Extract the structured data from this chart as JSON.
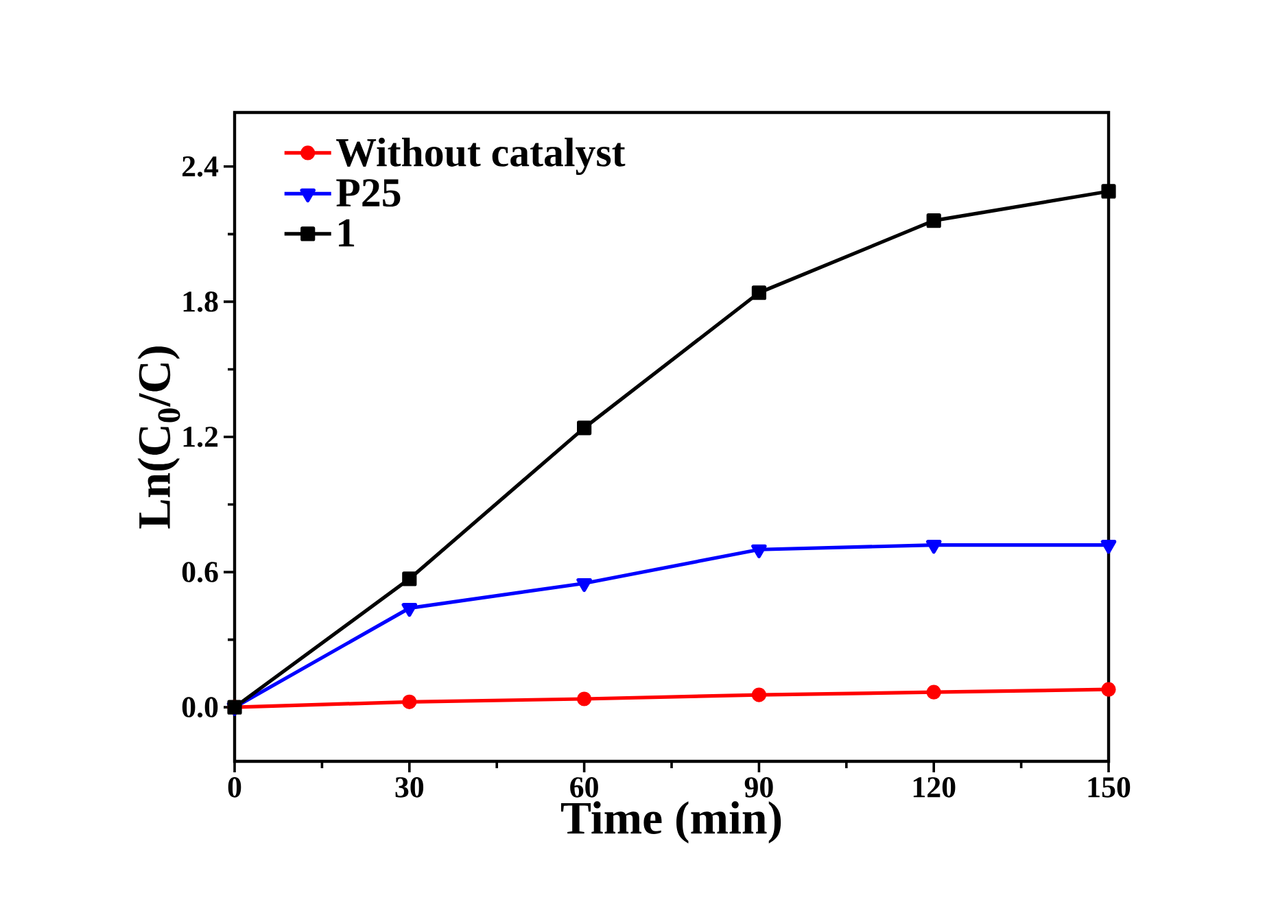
{
  "chart_data": {
    "type": "line",
    "xlabel": "Time (min)",
    "ylabel": "Ln(C$_{0}$/C)",
    "x": [
      0,
      30,
      60,
      90,
      120,
      150
    ],
    "series": [
      {
        "name": "Without catalyst",
        "color": "#ff0000",
        "marker": "circle",
        "values": [
          0,
          0.024,
          0.037,
          0.055,
          0.067,
          0.079
        ]
      },
      {
        "name": "P25",
        "color": "#0000ff",
        "marker": "triangle",
        "values": [
          0,
          0.44,
          0.55,
          0.7,
          0.72,
          0.72
        ]
      },
      {
        "name": "1",
        "color": "#000000",
        "marker": "square",
        "values": [
          0,
          0.57,
          1.24,
          1.84,
          2.16,
          2.29
        ]
      }
    ],
    "xlim": [
      0,
      150
    ],
    "ylim": [
      -0.24,
      2.64
    ],
    "xticks": [
      0,
      30,
      60,
      90,
      120,
      150
    ],
    "yticks": [
      {
        "value": 0,
        "label": "0.0"
      },
      0.6,
      1.2,
      1.8,
      2.4
    ],
    "legend": "top left",
    "grid": false,
    "line_style": "solid"
  }
}
